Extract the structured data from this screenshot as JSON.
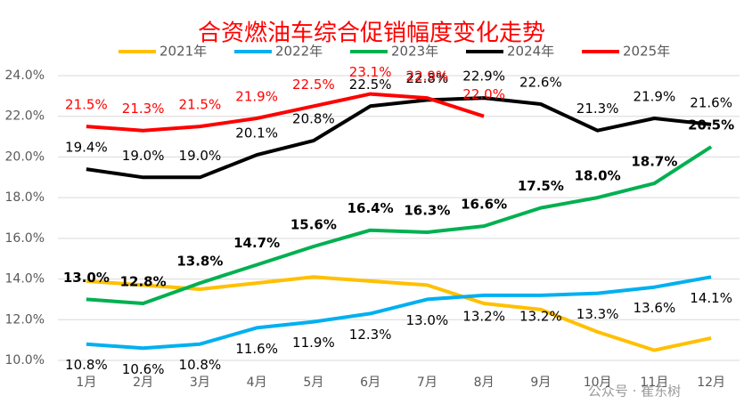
{
  "chart_data": {
    "type": "line",
    "title": "合资燃油车综合促销幅度变化走势",
    "watermark": "公众号 · 崔东树",
    "categories": [
      "1月",
      "2月",
      "3月",
      "4月",
      "5月",
      "6月",
      "7月",
      "8月",
      "9月",
      "10月",
      "11月",
      "12月"
    ],
    "ylim": [
      10,
      24
    ],
    "yticks": [
      {
        "value": 10,
        "label": "10.0%"
      },
      {
        "value": 12,
        "label": "12.0%"
      },
      {
        "value": 14,
        "label": "14.0%"
      },
      {
        "value": 16,
        "label": "16.0%"
      },
      {
        "value": 18,
        "label": "18.0%"
      },
      {
        "value": 20,
        "label": "20.0%"
      },
      {
        "value": 22,
        "label": "22.0%"
      },
      {
        "value": 24,
        "label": "24.0%"
      }
    ],
    "grid": true,
    "series": [
      {
        "name": "2021年",
        "color": "#ffc000",
        "values": [
          13.9,
          13.7,
          13.5,
          13.8,
          14.1,
          13.9,
          13.7,
          12.8,
          12.5,
          11.4,
          10.5,
          11.1
        ]
      },
      {
        "name": "2022年",
        "color": "#00b0f0",
        "values": [
          10.8,
          10.6,
          10.8,
          11.6,
          11.9,
          12.3,
          13.0,
          13.2,
          13.2,
          13.3,
          13.6,
          14.1
        ],
        "value_labels": [
          "10.8%",
          "10.6%",
          "10.8%",
          "11.6%",
          "11.9%",
          "12.3%",
          "13.0%",
          "13.2%",
          "13.2%",
          "13.3%",
          "13.6%",
          "14.1%"
        ]
      },
      {
        "name": "2023年",
        "color": "#00b050",
        "values": [
          13.0,
          12.8,
          13.8,
          14.7,
          15.6,
          16.4,
          16.3,
          16.6,
          17.5,
          18.0,
          18.7,
          20.5
        ],
        "value_labels": [
          "13.0%",
          "12.8%",
          "13.8%",
          "14.7%",
          "15.6%",
          "16.4%",
          "16.3%",
          "16.6%",
          "17.5%",
          "18.0%",
          "18.7%",
          "20.5%"
        ]
      },
      {
        "name": "2024年",
        "color": "#000000",
        "values": [
          19.4,
          19.0,
          19.0,
          20.1,
          20.8,
          22.5,
          22.8,
          22.9,
          22.6,
          21.3,
          21.9,
          21.6
        ],
        "value_labels": [
          "19.4%",
          "19.0%",
          "19.0%",
          "20.1%",
          "20.8%",
          "22.5%",
          "22.8%",
          "22.9%",
          "22.6%",
          "21.3%",
          "21.9%",
          "21.6%"
        ]
      },
      {
        "name": "2025年",
        "color": "#ff0000",
        "values": [
          21.5,
          21.3,
          21.5,
          21.9,
          22.5,
          23.1,
          22.9,
          22.0,
          null,
          null,
          null,
          null
        ],
        "value_labels": [
          "21.5%",
          "21.3%",
          "21.5%",
          "21.9%",
          "22.5%",
          "23.1%",
          "22.9%",
          "22.0%",
          null,
          null,
          null,
          null
        ]
      }
    ]
  }
}
